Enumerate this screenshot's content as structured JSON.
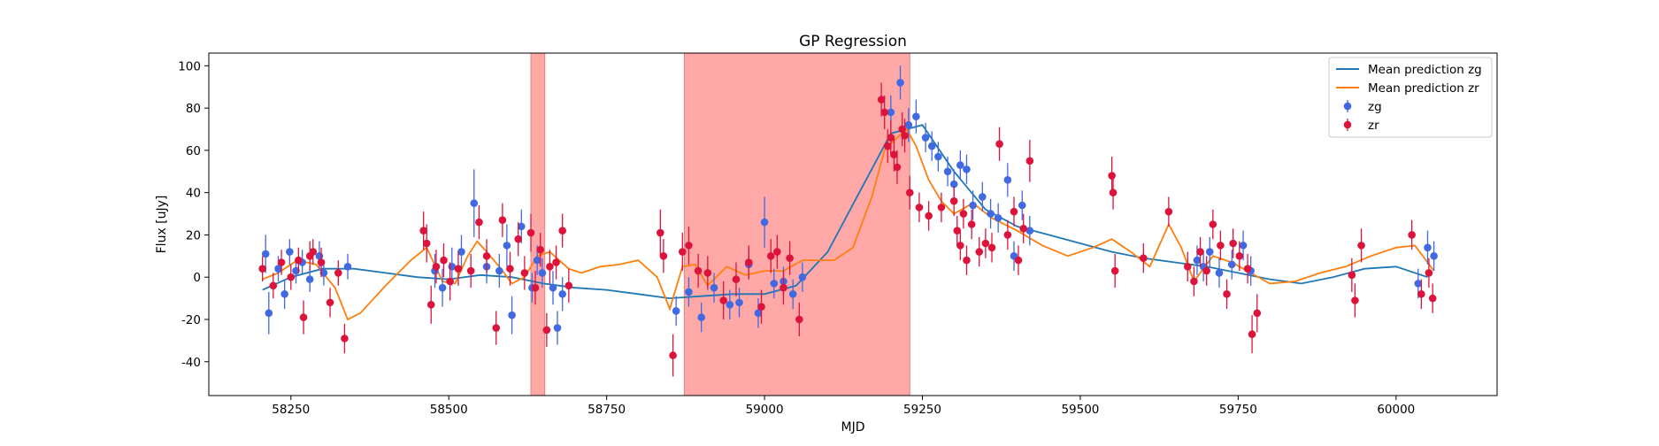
{
  "chart_data": {
    "type": "scatter",
    "title": "GP Regression",
    "xlabel": "MJD",
    "ylabel": "Flux [uJy]",
    "xlim": [
      58120,
      60160
    ],
    "ylim": [
      -56,
      106
    ],
    "xticks": [
      58250,
      58500,
      58750,
      59000,
      59250,
      59500,
      59750,
      60000
    ],
    "yticks": [
      -40,
      -20,
      0,
      20,
      40,
      60,
      80,
      100
    ],
    "grid": false,
    "legend_position": "top-right",
    "shaded_regions": [
      [
        58630,
        58652
      ],
      [
        58873,
        59230
      ]
    ],
    "shade_color": "#ff9999",
    "legend": [
      {
        "label": "Mean prediction zg",
        "kind": "line",
        "color": "#1f77b4"
      },
      {
        "label": "Mean prediction zr",
        "kind": "line",
        "color": "#ff7f0e"
      },
      {
        "label": "zg",
        "kind": "marker",
        "color": "#4169e1"
      },
      {
        "label": "zr",
        "kind": "marker",
        "color": "#dc143c"
      }
    ],
    "series": [
      {
        "name": "Mean prediction zg",
        "kind": "line",
        "color": "#1f77b4",
        "x": [
          58205,
          58250,
          58300,
          58350,
          58400,
          58450,
          58500,
          58550,
          58600,
          58650,
          58700,
          58750,
          58800,
          58850,
          58900,
          58950,
          59000,
          59050,
          59100,
          59150,
          59200,
          59250,
          59300,
          59350,
          59400,
          59450,
          59500,
          59550,
          59600,
          59650,
          59700,
          59750,
          59800,
          59850,
          59900,
          59950,
          60000,
          60050
        ],
        "y": [
          -6,
          0,
          4,
          4,
          2,
          0,
          -1,
          1,
          0,
          -3,
          -5,
          -6,
          -8,
          -10,
          -9,
          -8,
          -8,
          -4,
          12,
          40,
          68,
          72,
          50,
          32,
          24,
          20,
          16,
          12,
          9,
          7,
          5,
          2,
          -1,
          -3,
          0,
          4,
          5,
          0
        ]
      },
      {
        "name": "Mean prediction zr",
        "kind": "line",
        "color": "#ff7f0e",
        "x": [
          58205,
          58230,
          58260,
          58290,
          58320,
          58340,
          58360,
          58400,
          58440,
          58465,
          58490,
          58510,
          58530,
          58545,
          58560,
          58580,
          58600,
          58620,
          58640,
          58660,
          58690,
          58710,
          58740,
          58770,
          58800,
          58830,
          58850,
          58870,
          58890,
          58910,
          58940,
          58970,
          59000,
          59030,
          59060,
          59090,
          59110,
          59140,
          59170,
          59190,
          59210,
          59225,
          59240,
          59260,
          59280,
          59300,
          59330,
          59360,
          59400,
          59440,
          59480,
          59520,
          59550,
          59580,
          59610,
          59640,
          59660,
          59680,
          59710,
          59740,
          59770,
          59800,
          59840,
          59880,
          59920,
          59960,
          60000,
          60030,
          60060
        ],
        "y": [
          -1,
          2,
          8,
          6,
          -5,
          -20,
          -17,
          -4,
          8,
          14,
          -2,
          -3,
          10,
          17,
          12,
          5,
          -3,
          0,
          10,
          12,
          4,
          2,
          5,
          6,
          8,
          0,
          -15,
          5,
          6,
          -4,
          5,
          1,
          3,
          3,
          8,
          8,
          8,
          14,
          38,
          60,
          66,
          70,
          62,
          46,
          36,
          30,
          35,
          28,
          22,
          15,
          10,
          14,
          18,
          12,
          5,
          25,
          14,
          -2,
          10,
          7,
          2,
          -3,
          -2,
          2,
          5,
          10,
          14,
          15,
          3
        ]
      },
      {
        "name": "zg",
        "kind": "errorbar",
        "color": "#4169e1",
        "x": [
          58210,
          58215,
          58230,
          58240,
          58248,
          58258,
          58268,
          58280,
          58295,
          58302,
          58340,
          58478,
          58490,
          58505,
          58520,
          58540,
          58560,
          58580,
          58592,
          58600,
          58615,
          58632,
          58640,
          58648,
          58665,
          58672,
          58680,
          58860,
          58880,
          58900,
          58920,
          58945,
          58960,
          58975,
          58990,
          59000,
          59015,
          59030,
          59045,
          59060,
          59200,
          59215,
          59228,
          59240,
          59255,
          59265,
          59275,
          59290,
          59300,
          59310,
          59320,
          59330,
          59345,
          59358,
          59370,
          59385,
          59395,
          59408,
          59420,
          59685,
          59695,
          59705,
          59720,
          59740,
          59758,
          59770,
          60035,
          60050,
          60060
        ],
        "y": [
          11,
          -17,
          4,
          -8,
          12,
          3,
          7,
          -1,
          10,
          2,
          5,
          3,
          -5,
          5,
          12,
          35,
          5,
          3,
          15,
          -18,
          24,
          -5,
          8,
          2,
          -5,
          -24,
          -8,
          -16,
          -7,
          -19,
          -5,
          -13,
          -12,
          6,
          -17,
          26,
          -3,
          -2,
          -8,
          0,
          78,
          92,
          72,
          76,
          66,
          62,
          57,
          50,
          44,
          53,
          51,
          34,
          38,
          30,
          28,
          46,
          10,
          34,
          22,
          8,
          5,
          12,
          2,
          6,
          15,
          3,
          -3,
          14,
          10
        ],
        "err": [
          9,
          10,
          6,
          7,
          6,
          6,
          6,
          6,
          7,
          6,
          6,
          8,
          9,
          9,
          8,
          16,
          8,
          8,
          10,
          9,
          8,
          7,
          7,
          7,
          8,
          8,
          8,
          7,
          7,
          7,
          7,
          7,
          7,
          7,
          7,
          12,
          7,
          7,
          7,
          7,
          8,
          8,
          8,
          8,
          7,
          7,
          7,
          7,
          7,
          7,
          7,
          7,
          7,
          7,
          7,
          8,
          7,
          7,
          7,
          7,
          7,
          7,
          7,
          7,
          7,
          7,
          7,
          8,
          7
        ]
      },
      {
        "name": "zr",
        "kind": "errorbar",
        "color": "#dc143c",
        "x": [
          58205,
          58222,
          58235,
          58250,
          58262,
          58270,
          58280,
          58285,
          58298,
          58312,
          58325,
          58335,
          58460,
          58465,
          58472,
          58480,
          58492,
          58502,
          58515,
          58535,
          58548,
          58560,
          58575,
          58585,
          58597,
          58610,
          58620,
          58630,
          58637,
          58645,
          58655,
          58660,
          58670,
          58680,
          58690,
          58835,
          58840,
          58855,
          58870,
          58880,
          58895,
          58910,
          58935,
          58955,
          58975,
          58995,
          59010,
          59020,
          59030,
          59040,
          59055,
          59185,
          59190,
          59195,
          59200,
          59205,
          59210,
          59218,
          59222,
          59230,
          59245,
          59260,
          59280,
          59300,
          59305,
          59310,
          59315,
          59320,
          59328,
          59340,
          59350,
          59360,
          59372,
          59385,
          59395,
          59402,
          59410,
          59420,
          59550,
          59552,
          59555,
          59600,
          59640,
          59670,
          59680,
          59690,
          59700,
          59710,
          59722,
          59732,
          59742,
          59752,
          59765,
          59772,
          59780,
          59930,
          59935,
          59945,
          60025,
          60040,
          60052,
          60058
        ],
        "y": [
          4,
          -4,
          7,
          0,
          8,
          -19,
          10,
          12,
          7,
          -12,
          2,
          -29,
          22,
          16,
          -13,
          5,
          8,
          -2,
          4,
          3,
          26,
          10,
          -24,
          27,
          4,
          18,
          2,
          21,
          -5,
          13,
          -25,
          5,
          7,
          22,
          -4,
          21,
          10,
          -37,
          12,
          15,
          3,
          2,
          -11,
          -1,
          7,
          -14,
          10,
          12,
          -5,
          9,
          -20,
          84,
          78,
          62,
          66,
          58,
          52,
          70,
          67,
          40,
          33,
          29,
          33,
          36,
          22,
          15,
          30,
          8,
          25,
          12,
          16,
          14,
          63,
          20,
          31,
          8,
          23,
          55,
          48,
          40,
          3,
          9,
          31,
          5,
          -2,
          12,
          3,
          25,
          15,
          -8,
          16,
          10,
          4,
          -27,
          -17,
          1,
          -11,
          15,
          20,
          -8,
          2,
          -10
        ],
        "err": [
          6,
          6,
          6,
          6,
          6,
          8,
          7,
          6,
          7,
          7,
          6,
          7,
          9,
          9,
          9,
          8,
          8,
          9,
          8,
          8,
          8,
          8,
          8,
          8,
          8,
          8,
          8,
          9,
          8,
          8,
          8,
          8,
          8,
          8,
          8,
          11,
          8,
          10,
          9,
          9,
          8,
          8,
          9,
          8,
          8,
          8,
          8,
          8,
          8,
          8,
          8,
          8,
          8,
          8,
          8,
          8,
          8,
          8,
          8,
          8,
          7,
          7,
          7,
          7,
          7,
          7,
          7,
          7,
          7,
          7,
          7,
          7,
          8,
          7,
          7,
          7,
          7,
          10,
          9,
          8,
          8,
          7,
          7,
          7,
          7,
          7,
          7,
          7,
          7,
          7,
          7,
          7,
          7,
          9,
          9,
          8,
          8,
          8,
          7,
          7,
          7,
          7
        ]
      }
    ]
  }
}
